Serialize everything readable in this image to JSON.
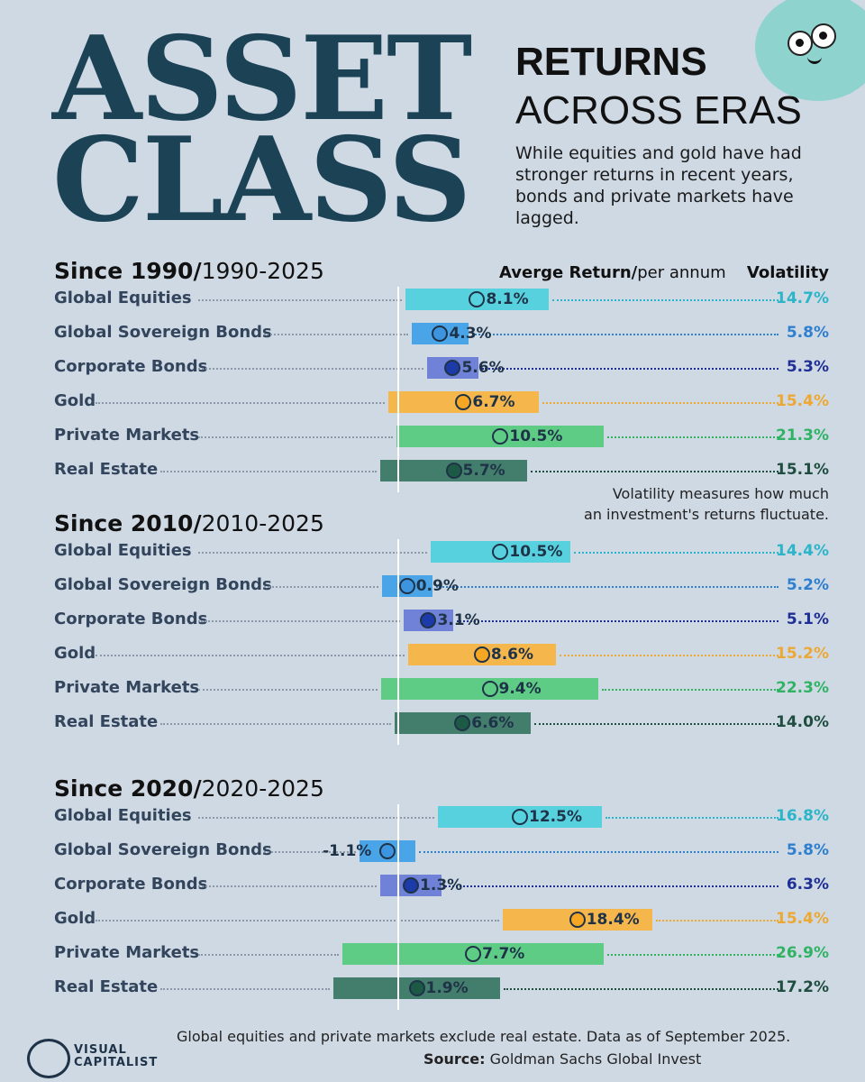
{
  "header": {
    "big_line1": "ASSET",
    "big_line2": "CLASS",
    "title_bold": "RETURNS",
    "title_light": "ACROSS ERAS",
    "description": "While equities and gold have had stronger returns in recent years, bonds and private markets have lagged."
  },
  "columns": {
    "return_label_bold": "Averge Return",
    "return_label_slash": "/",
    "return_label_light": "per annum",
    "volatility_label": "Volatility"
  },
  "volatility_note_line1": "Volatility measures how much",
  "volatility_note_line2": "an investment's returns fluctuate.",
  "footer": {
    "note": "Global equities and private markets exclude real estate. Data as of September 2025.",
    "source_label": "Source:",
    "source_text": "Goldman Sachs Global Invest",
    "brand_line1": "VISUAL",
    "brand_line2": "CAPITALIST"
  },
  "colors": {
    "Global Equities": "#58d1df",
    "Global Sovereign Bonds": "#4aa4e8",
    "Corporate Bonds": "#6f82d8",
    "Gold": "#f5b64c",
    "Private Markets": "#5fcc86",
    "Real Estate": "#437d6c"
  },
  "text_colors": {
    "Global Equities": "#2bb5c8",
    "Global Sovereign Bonds": "#2f7fcf",
    "Corporate Bonds": "#1e2f95",
    "Gold": "#eda833",
    "Private Markets": "#2fb363",
    "Real Estate": "#1f4e40"
  },
  "dot_colors": {
    "Global Equities": "#58d1df",
    "Global Sovereign Bonds": "#3c95de",
    "Corporate Bonds": "#1c3aa8",
    "Gold": "#f5a623",
    "Private Markets": "#5fcc86",
    "Real Estate": "#1d5a45"
  },
  "chart_data": {
    "type": "bar",
    "xlabel": "Averge Return/per annum",
    "range_note": "bars span average return ± volatility",
    "sections": [
      {
        "title_bold": "Since 1990",
        "title_slash": "/",
        "title_light": "1990-2025",
        "rows": [
          {
            "name": "Global Equities",
            "return": 8.1,
            "volatility": 14.7,
            "return_label": "8.1%",
            "vol_label": "14.7%"
          },
          {
            "name": "Global Sovereign Bonds",
            "return": 4.3,
            "volatility": 5.8,
            "return_label": "4.3%",
            "vol_label": "5.8%"
          },
          {
            "name": "Corporate Bonds",
            "return": 5.6,
            "volatility": 5.3,
            "return_label": "5.6%",
            "vol_label": "5.3%"
          },
          {
            "name": "Gold",
            "return": 6.7,
            "volatility": 15.4,
            "return_label": "6.7%",
            "vol_label": "15.4%"
          },
          {
            "name": "Private Markets",
            "return": 10.5,
            "volatility": 21.3,
            "return_label": "10.5%",
            "vol_label": "21.3%"
          },
          {
            "name": "Real Estate",
            "return": 5.7,
            "volatility": 15.1,
            "return_label": "5.7%",
            "vol_label": "15.1%"
          }
        ]
      },
      {
        "title_bold": "Since 2010",
        "title_slash": "/",
        "title_light": "2010-2025",
        "rows": [
          {
            "name": "Global Equities",
            "return": 10.5,
            "volatility": 14.4,
            "return_label": "10.5%",
            "vol_label": "14.4%"
          },
          {
            "name": "Global Sovereign Bonds",
            "return": 0.9,
            "volatility": 5.2,
            "return_label": "0.9%",
            "vol_label": "5.2%"
          },
          {
            "name": "Corporate Bonds",
            "return": 3.1,
            "volatility": 5.1,
            "return_label": "3.1%",
            "vol_label": "5.1%"
          },
          {
            "name": "Gold",
            "return": 8.6,
            "volatility": 15.2,
            "return_label": "8.6%",
            "vol_label": "15.2%"
          },
          {
            "name": "Private Markets",
            "return": 9.4,
            "volatility": 22.3,
            "return_label": "9.4%",
            "vol_label": "22.3%"
          },
          {
            "name": "Real Estate",
            "return": 6.6,
            "volatility": 14.0,
            "return_label": "6.6%",
            "vol_label": "14.0%"
          }
        ]
      },
      {
        "title_bold": "Since 2020",
        "title_slash": "/",
        "title_light": "2020-2025",
        "rows": [
          {
            "name": "Global Equities",
            "return": 12.5,
            "volatility": 16.8,
            "return_label": "12.5%",
            "vol_label": "16.8%"
          },
          {
            "name": "Global Sovereign Bonds",
            "return": -1.1,
            "volatility": 5.8,
            "return_label": "-1.1%",
            "vol_label": "5.8%"
          },
          {
            "name": "Corporate Bonds",
            "return": 1.3,
            "volatility": 6.3,
            "return_label": "1.3%",
            "vol_label": "6.3%"
          },
          {
            "name": "Gold",
            "return": 18.4,
            "volatility": 15.4,
            "return_label": "18.4%",
            "vol_label": "15.4%"
          },
          {
            "name": "Private Markets",
            "return": 7.7,
            "volatility": 26.9,
            "return_label": "7.7%",
            "vol_label": "26.9%"
          },
          {
            "name": "Real Estate",
            "return": 1.9,
            "volatility": 17.2,
            "return_label": "1.9%",
            "vol_label": "17.2%"
          }
        ]
      }
    ]
  }
}
